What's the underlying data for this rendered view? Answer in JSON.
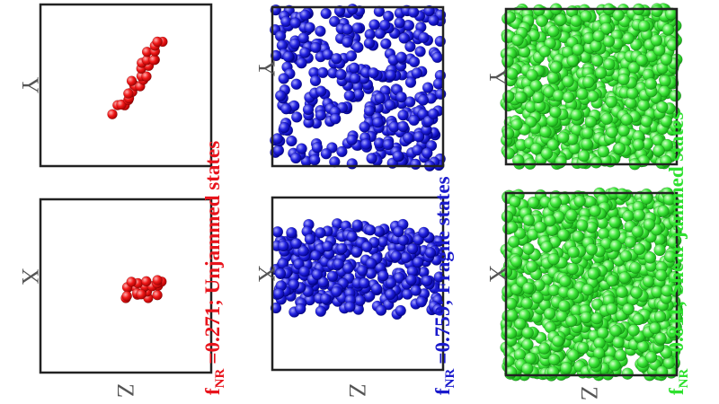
{
  "panels": [
    {
      "y_label": "Y",
      "x_label": "X",
      "z_label": "Z",
      "caption": {
        "symbol": "f",
        "subscript": "NR",
        "text": "=0.271; Unjammed states"
      }
    },
    {
      "y_label": "Y",
      "x_label": "X",
      "z_label": "Z",
      "caption": {
        "symbol": "f",
        "subscript": "NR",
        "text": "=0.759; Fragile states"
      }
    },
    {
      "y_label": "Y",
      "x_label": "X",
      "z_label": "Z",
      "caption": {
        "symbol": "f",
        "subscript": "NR",
        "text": "=0.811; Shear jammed states"
      }
    }
  ]
}
